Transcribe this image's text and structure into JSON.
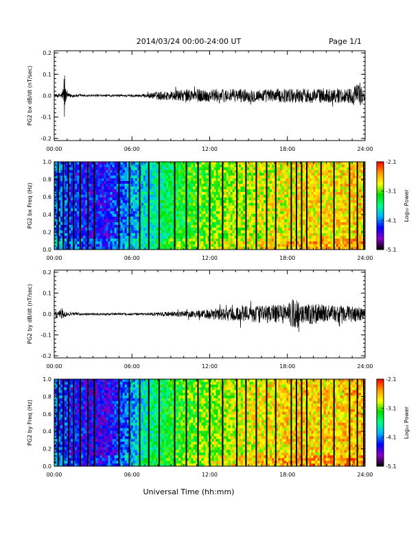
{
  "header": {
    "title": "2014/03/24  00:00-24:00 UT",
    "page": "Page 1/1"
  },
  "footer": {
    "xlabel": "Universal Time (hh:mm)"
  },
  "colorbar": {
    "tick_labels": [
      "-2.1",
      "-3.1",
      "-4.1",
      "-5.1"
    ],
    "tick_values": [
      -2.1,
      -3.1,
      -4.1,
      -5.1
    ],
    "range": [
      -5.1,
      -2.1
    ],
    "label": "Log₁₀ Power",
    "colors": [
      "#000000",
      "#8a00c8",
      "#0000ff",
      "#00b4ff",
      "#00ff88",
      "#00e000",
      "#ffff00",
      "#ff9900",
      "#ff0000"
    ]
  },
  "chart_data": [
    {
      "type": "line",
      "ylabel": "PG2 bx dB/dt (nT/sec)",
      "x_tick_labels": [
        "00:00",
        "06:00",
        "12:00",
        "18:00",
        "24:00"
      ],
      "xlim": [
        0,
        24
      ],
      "y_tick_labels": [
        "0.2",
        "0.1",
        "0.0",
        "-0.1",
        "-0.2"
      ],
      "ylim": [
        -0.21,
        0.21
      ],
      "x_hours": [
        0.0,
        0.3,
        0.6,
        0.7,
        0.75,
        0.8,
        0.85,
        0.9,
        1.0,
        1.5,
        2.0,
        3.0,
        4.0,
        5.0,
        6.0,
        7.0,
        8.0,
        9.0,
        10.0,
        11.0,
        12.0,
        13.0,
        14.0,
        15.0,
        16.0,
        17.0,
        18.0,
        19.0,
        20.0,
        21.0,
        22.0,
        23.0,
        23.3,
        24.0
      ],
      "amplitude": [
        0.008,
        0.008,
        0.018,
        0.05,
        0.12,
        0.13,
        0.05,
        0.03,
        0.012,
        0.007,
        0.006,
        0.005,
        0.005,
        0.005,
        0.006,
        0.008,
        0.02,
        0.022,
        0.028,
        0.032,
        0.03,
        0.032,
        0.03,
        0.032,
        0.03,
        0.032,
        0.033,
        0.034,
        0.034,
        0.034,
        0.035,
        0.035,
        0.06,
        0.03
      ]
    },
    {
      "type": "heatmap",
      "ylabel": "PG2 bx Freq (Hz)",
      "x_tick_labels": [
        "00:00",
        "06:00",
        "12:00",
        "18:00",
        "24:00"
      ],
      "xlim": [
        0,
        24
      ],
      "y_tick_labels": [
        "1.0",
        "0.8",
        "0.6",
        "0.4",
        "0.2",
        "0.0"
      ],
      "ylim": [
        0,
        1.0
      ],
      "z_label": "Log₁₀ Power",
      "zlim": [
        -5.1,
        -2.1
      ],
      "mean_power_by_hour": [
        -4.1,
        -4.2,
        -4.3,
        -4.4,
        -4.4,
        -4.2,
        -4.0,
        -3.8,
        -3.6,
        -3.4,
        -3.3,
        -3.2,
        -3.15,
        -3.05,
        -3.0,
        -2.95,
        -2.9,
        -2.85,
        -2.8,
        -2.75,
        -2.75,
        -2.75,
        -2.75,
        -2.7,
        -2.7
      ],
      "gap_hours": [
        0.3,
        0.7,
        1.1,
        1.5,
        2.0,
        2.6,
        3.1,
        5.0,
        5.8,
        6.6,
        7.3,
        8.1,
        9.3,
        10.2,
        11.1,
        12.0,
        13.0,
        14.1,
        14.8,
        15.6,
        16.4,
        17.1,
        18.3,
        18.7,
        19.1,
        19.5,
        20.6,
        21.6,
        22.8,
        23.4,
        23.9
      ]
    },
    {
      "type": "line",
      "ylabel": "PG2 by dB/dt (nT/sec)",
      "x_tick_labels": [
        "00:00",
        "06:00",
        "12:00",
        "18:00",
        "24:00"
      ],
      "xlim": [
        0,
        24
      ],
      "y_tick_labels": [
        "0.2",
        "0.1",
        "0.0",
        "-0.1",
        "-0.2"
      ],
      "ylim": [
        -0.21,
        0.21
      ],
      "x_hours": [
        0.0,
        0.2,
        0.4,
        0.6,
        0.7,
        0.8,
        0.9,
        1.0,
        1.5,
        2.0,
        3.0,
        4.0,
        5.0,
        6.0,
        7.0,
        8.0,
        9.0,
        10.0,
        11.0,
        12.0,
        13.0,
        14.0,
        15.0,
        16.0,
        17.0,
        18.0,
        18.6,
        19.0,
        20.0,
        21.0,
        22.0,
        23.0,
        24.0
      ],
      "amplitude": [
        0.012,
        0.02,
        0.018,
        0.035,
        0.03,
        0.02,
        0.015,
        0.01,
        0.007,
        0.006,
        0.005,
        0.005,
        0.005,
        0.005,
        0.006,
        0.008,
        0.012,
        0.015,
        0.018,
        0.026,
        0.03,
        0.036,
        0.04,
        0.045,
        0.045,
        0.048,
        0.09,
        0.045,
        0.05,
        0.045,
        0.04,
        0.04,
        0.03
      ]
    },
    {
      "type": "heatmap",
      "ylabel": "PG2 by Freq (Hz)",
      "x_tick_labels": [
        "00:00",
        "06:00",
        "12:00",
        "18:00",
        "24:00"
      ],
      "xlim": [
        0,
        24
      ],
      "y_tick_labels": [
        "1.0",
        "0.8",
        "0.6",
        "0.4",
        "0.2",
        "0.0"
      ],
      "ylim": [
        0,
        1.0
      ],
      "z_label": "Log₁₀ Power",
      "zlim": [
        -5.1,
        -2.1
      ],
      "mean_power_by_hour": [
        -4.2,
        -4.3,
        -4.4,
        -4.5,
        -4.5,
        -4.3,
        -4.0,
        -3.7,
        -3.5,
        -3.3,
        -3.2,
        -3.1,
        -3.05,
        -2.95,
        -2.9,
        -2.85,
        -2.8,
        -2.75,
        -2.7,
        -2.7,
        -2.7,
        -2.7,
        -2.7,
        -2.65,
        -2.65
      ],
      "gap_hours": [
        0.3,
        0.7,
        1.1,
        1.5,
        2.0,
        2.6,
        3.1,
        5.0,
        5.8,
        6.6,
        7.3,
        8.1,
        9.3,
        10.2,
        11.1,
        12.0,
        13.0,
        14.1,
        14.8,
        15.6,
        16.4,
        17.1,
        18.3,
        18.7,
        19.1,
        19.5,
        20.6,
        21.6,
        22.8,
        23.4,
        23.9
      ]
    }
  ]
}
